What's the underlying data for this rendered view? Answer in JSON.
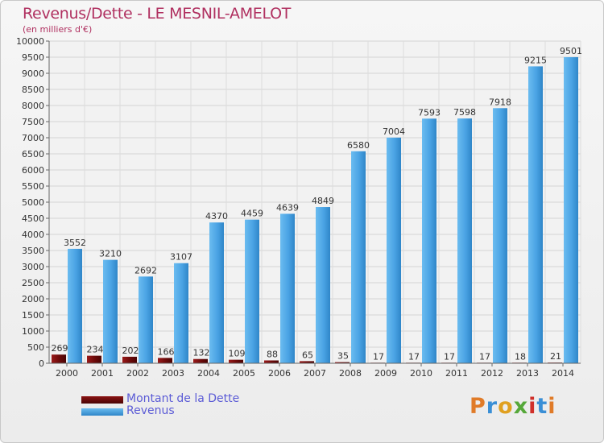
{
  "header": {
    "title": "Revenus/Dette - LE MESNIL-AMELOT",
    "subtitle": "(en milliers d'€)"
  },
  "legend": {
    "items": [
      {
        "label": "Montant de la Dette",
        "color": "#6b0a0a"
      },
      {
        "label": "Revenus",
        "color": "#4aa3e4"
      }
    ]
  },
  "logo": {
    "text": "Proxiti",
    "colors": [
      "#e07b28",
      "#3a8fd6",
      "#e0a020",
      "#56a83a",
      "#d0302a",
      "#3a8fd6",
      "#e07b28"
    ]
  },
  "chart_data": {
    "type": "bar",
    "categories": [
      "2000",
      "2001",
      "2002",
      "2003",
      "2004",
      "2005",
      "2006",
      "2007",
      "2008",
      "2009",
      "2010",
      "2011",
      "2012",
      "2013",
      "2014"
    ],
    "series": [
      {
        "name": "Montant de la Dette",
        "color": "#6b0a0a",
        "values": [
          269,
          234,
          202,
          166,
          132,
          109,
          88,
          65,
          35,
          17,
          17,
          17,
          17,
          18,
          21
        ],
        "labels": [
          "269",
          "234",
          "202",
          "166",
          "132",
          "109",
          "88",
          "65",
          "35",
          "17",
          "17",
          "17",
          "17",
          "18",
          "21"
        ]
      },
      {
        "name": "Revenus",
        "color": "#4aa3e4",
        "values": [
          3552,
          3210,
          2692,
          3107,
          4370,
          4459,
          4639,
          4849,
          6580,
          7004,
          7593,
          7598,
          7918,
          9215,
          9501
        ],
        "labels": [
          "3552",
          "3210",
          "2692",
          "3107",
          "4370",
          "4459",
          "4639",
          "4849",
          "6580",
          "7004",
          "7593",
          "7598",
          "7918",
          "9215",
          "9501"
        ]
      }
    ],
    "ylim": [
      0,
      10000
    ],
    "ytick_step": 500,
    "yticks": [
      "0",
      "500",
      "1000",
      "1500",
      "2000",
      "2500",
      "3000",
      "3500",
      "4000",
      "4500",
      "5000",
      "5500",
      "6000",
      "6500",
      "7000",
      "7500",
      "8000",
      "8500",
      "9000",
      "9500",
      "10000"
    ],
    "grid": true,
    "legend_position": "bottom-left"
  }
}
